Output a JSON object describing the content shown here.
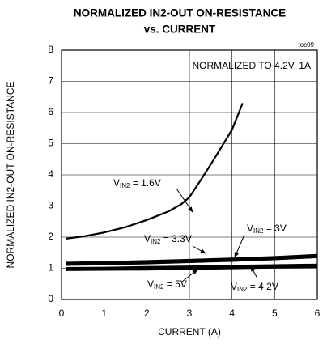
{
  "chart_data": {
    "type": "line",
    "title": "NORMALIZED IN2-OUT ON-RESISTANCE",
    "subtitle": "vs. CURRENT",
    "code": "toc09",
    "annotation": "NORMALIZED TO 4.2V, 1A",
    "x_label": "CURRENT (A)",
    "y_label": "NORMALIZED IN2-OUT ON-RESISTANCE",
    "xlim": [
      0,
      6
    ],
    "ylim": [
      0,
      8
    ],
    "xticks": [
      0,
      1,
      2,
      3,
      4,
      5,
      6
    ],
    "yticks": [
      0,
      1,
      2,
      3,
      4,
      5,
      6,
      7,
      8
    ],
    "grid": true,
    "series": [
      {
        "name": "VIN2 = 1.6V",
        "color": "#000000",
        "x": [
          0.1,
          0.5,
          1,
          1.5,
          2,
          2.5,
          2.8,
          3,
          3.3,
          3.6,
          4,
          4.25
        ],
        "values": [
          1.95,
          2.02,
          2.15,
          2.32,
          2.55,
          2.82,
          3.05,
          3.28,
          3.9,
          4.55,
          5.45,
          6.3
        ]
      },
      {
        "name": "VIN2 = 3V",
        "color": "#000000",
        "x": [
          0.1,
          1,
          2,
          3,
          4,
          5,
          6
        ],
        "values": [
          1.17,
          1.19,
          1.22,
          1.26,
          1.3,
          1.35,
          1.42
        ]
      },
      {
        "name": "VIN2 = 3.3V",
        "color": "#000000",
        "x": [
          0.1,
          1,
          2,
          3,
          4,
          5,
          6
        ],
        "values": [
          1.12,
          1.14,
          1.17,
          1.21,
          1.25,
          1.3,
          1.37
        ]
      },
      {
        "name": "VIN2 = 4.2V",
        "color": "#000000",
        "x": [
          0.1,
          1,
          2,
          3,
          4,
          5,
          6
        ],
        "values": [
          1.0,
          1.01,
          1.03,
          1.05,
          1.07,
          1.09,
          1.11
        ]
      },
      {
        "name": "VIN2 = 5V",
        "color": "#000000",
        "x": [
          0.1,
          1,
          2,
          3,
          4,
          5,
          6
        ],
        "values": [
          0.95,
          0.96,
          0.97,
          0.99,
          1.01,
          1.03,
          1.05
        ]
      }
    ]
  }
}
